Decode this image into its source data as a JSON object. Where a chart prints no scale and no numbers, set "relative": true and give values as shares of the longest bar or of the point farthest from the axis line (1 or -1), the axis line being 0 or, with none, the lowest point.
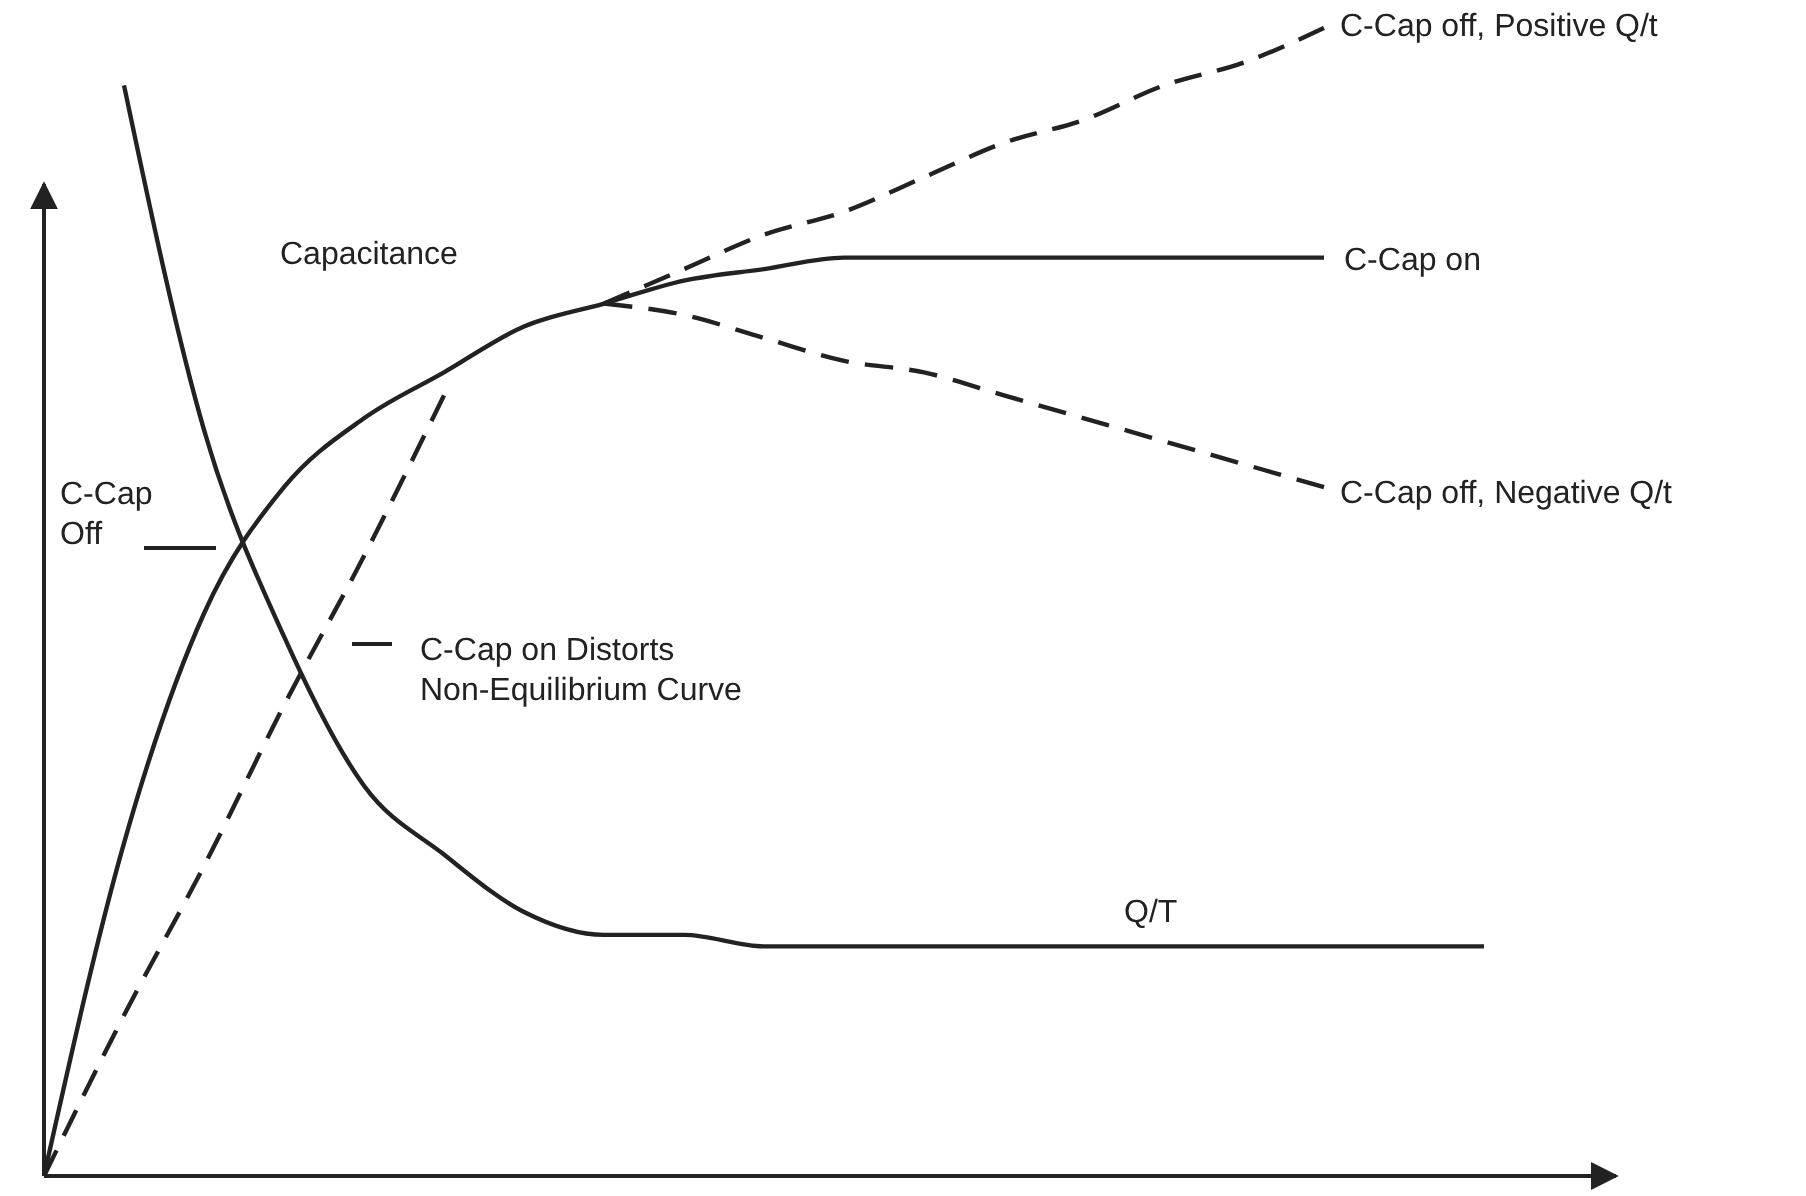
{
  "chart_data": {
    "type": "line",
    "relative": true,
    "categories": [
      null,
      null,
      null,
      null,
      null,
      null,
      null,
      null,
      null,
      null,
      null,
      null,
      null,
      null,
      null,
      null,
      null,
      null,
      null,
      null
    ],
    "series": [
      {
        "name": "C-Cap on",
        "color": "#222222",
        "line_style": "solid",
        "values": [
          0,
          0.29,
          0.49,
          0.6,
          0.66,
          0.7,
          0.74,
          0.76,
          0.78,
          0.79,
          0.8,
          0.8,
          0.8,
          0.8,
          0.8,
          0.8,
          0.8,
          null,
          null,
          null
        ]
      },
      {
        "name": "Q/T",
        "color": "#222222",
        "line_style": "solid",
        "values": [
          null,
          0.95,
          0.65,
          0.47,
          0.34,
          0.28,
          0.23,
          0.21,
          0.21,
          0.2,
          0.2,
          0.2,
          0.2,
          0.2,
          0.2,
          0.2,
          0.2,
          0.2,
          0.2,
          null
        ]
      },
      {
        "color": "#222222",
        "line_style": "dashed",
        "values": [
          0,
          0.14,
          0.27,
          0.41,
          0.54,
          0.68,
          null,
          null,
          null,
          null,
          null,
          null,
          null,
          null,
          null,
          null,
          null,
          null,
          null,
          null
        ]
      },
      {
        "name": "C-Cap off, Positive Q/t",
        "color": "#222222",
        "line_style": "dashed",
        "values": [
          null,
          null,
          null,
          null,
          null,
          null,
          null,
          0.76,
          0.79,
          0.82,
          0.84,
          0.87,
          0.9,
          0.92,
          0.95,
          0.97,
          1,
          null,
          null,
          null
        ]
      },
      {
        "name": "C-Cap off, Negative Q/t",
        "color": "#222222",
        "line_style": "dashed",
        "values": [
          null,
          null,
          null,
          null,
          null,
          null,
          null,
          0.76,
          0.75,
          0.73,
          0.71,
          0.7,
          0.68,
          0.66,
          0.64,
          0.62,
          0.6,
          null,
          null,
          null
        ]
      }
    ],
    "annotations": [
      "Capacitance",
      "C-Cap Off",
      "C-Cap on Distorts Non-Equilibrium Curve"
    ]
  }
}
